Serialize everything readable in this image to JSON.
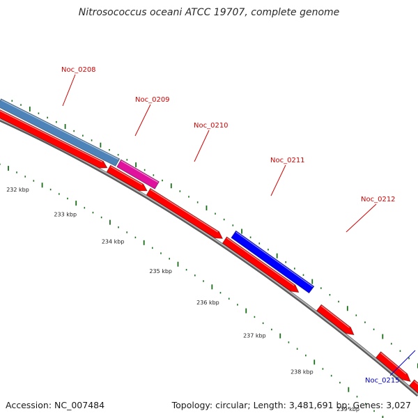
{
  "title": "Nitrosococcus oceani ATCC 19707, complete genome",
  "footer": {
    "accession": "Accession: NC_007484",
    "topology": "Topology: circular; Length: 3,481,691 bp; Genes: 3,027"
  },
  "colors": {
    "backbone": "#8c8c8c",
    "tick_inner": "#1a6e1a",
    "tick_outer": "#1a6e1a",
    "gene_red": "#ff0000",
    "gene_steelblue": "#4d83b8",
    "gene_magenta": "#e0119c",
    "gene_blue": "#0000ff",
    "label_red": "#d40000",
    "label_blue": "#0000cc"
  },
  "ticks": [
    {
      "label": "232 kbp"
    },
    {
      "label": "233 kbp"
    },
    {
      "label": "234 kbp"
    },
    {
      "label": "235 kbp"
    },
    {
      "label": "236 kbp"
    },
    {
      "label": "237 kbp"
    },
    {
      "label": "238 kbp"
    },
    {
      "label": "239 kbp"
    }
  ],
  "genes": [
    {
      "name": "Noc_0208",
      "color": "steelblue",
      "label_color": "red"
    },
    {
      "name": "Noc_0209",
      "color": "magenta",
      "label_color": "red"
    },
    {
      "name": "Noc_0210",
      "color": "red",
      "label_color": "red"
    },
    {
      "name": "Noc_0211",
      "color": "blue",
      "label_color": "red"
    },
    {
      "name": "Noc_0212",
      "color": "red",
      "label_color": "red"
    },
    {
      "name": "Noc_0215",
      "color": "red",
      "label_color": "blue"
    }
  ]
}
